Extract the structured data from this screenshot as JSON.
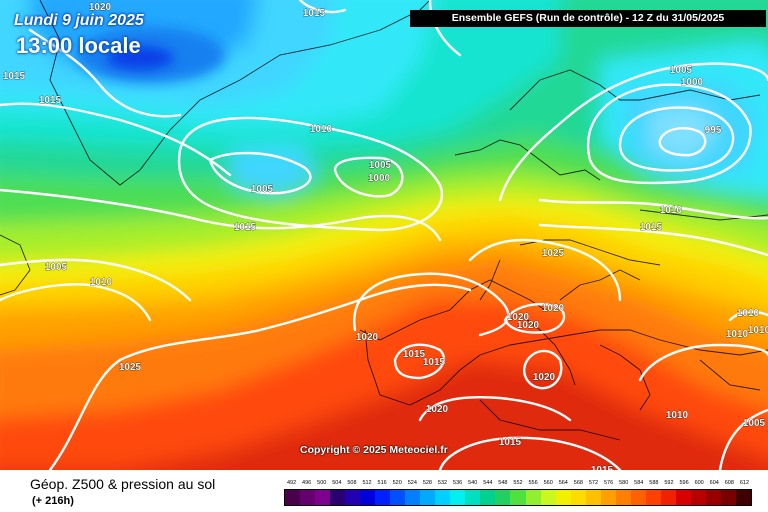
{
  "header": {
    "date": "Lundi 9 juin 2025",
    "local_time": "13:00 locale",
    "run_info": "Ensemble GEFS  (Run de contrôle)  -  12 Z du 31/05/2025"
  },
  "copyright": "Copyright © 2025 Meteociel.fr",
  "footer": {
    "title": "Géop. Z500 & pression au sol",
    "lead_time": "(+ 216h)"
  },
  "color_scale": {
    "unit_note": "",
    "ticks": [
      "492",
      "496",
      "500",
      "504",
      "508",
      "512",
      "516",
      "520",
      "524",
      "528",
      "532",
      "536",
      "540",
      "544",
      "548",
      "552",
      "556",
      "560",
      "564",
      "568",
      "572",
      "576",
      "580",
      "584",
      "588",
      "592",
      "596",
      "600",
      "604",
      "608",
      "612"
    ],
    "colors": [
      "#4a004a",
      "#66006e",
      "#7e0090",
      "#2a0070",
      "#2000b0",
      "#0000d8",
      "#0020ff",
      "#0050ff",
      "#0080ff",
      "#00aaff",
      "#00d0ff",
      "#00f0f0",
      "#00e0c0",
      "#00d090",
      "#20d060",
      "#50e040",
      "#90f030",
      "#c8f820",
      "#f0f000",
      "#ffdc00",
      "#ffc000",
      "#ffa000",
      "#ff8000",
      "#ff6000",
      "#ff4000",
      "#f02000",
      "#d80000",
      "#b80000",
      "#980000",
      "#780000",
      "#400000"
    ]
  },
  "isobar_labels": [
    {
      "id": "p-1020-greenland",
      "text": "1020"
    },
    {
      "id": "p-1015-top",
      "text": "1015"
    },
    {
      "id": "p-1015-w1",
      "text": "1015"
    },
    {
      "id": "p-1015-w2",
      "text": "1015"
    },
    {
      "id": "p-1010-n",
      "text": "1010"
    },
    {
      "id": "p-1005-low1",
      "text": "1005"
    },
    {
      "id": "p-1005-low2",
      "text": "1005"
    },
    {
      "id": "p-1000-low",
      "text": "1000"
    },
    {
      "id": "p-1015-mid",
      "text": "1015"
    },
    {
      "id": "p-1005-west",
      "text": "1005"
    },
    {
      "id": "p-1010-west",
      "text": "1010"
    },
    {
      "id": "p-1025-sw",
      "text": "1025"
    },
    {
      "id": "p-1020-atl",
      "text": "1020"
    },
    {
      "id": "p-1015-iberia",
      "text": "1015"
    },
    {
      "id": "p-1015-iberia2",
      "text": "1015"
    },
    {
      "id": "p-1020-med",
      "text": "1020"
    },
    {
      "id": "p-1015-africa",
      "text": "1015"
    },
    {
      "id": "p-1015-bottom",
      "text": "1015"
    },
    {
      "id": "p-1020-alps1",
      "text": "1020"
    },
    {
      "id": "p-1020-alps2",
      "text": "1020"
    },
    {
      "id": "p-1020-alps3",
      "text": "1020"
    },
    {
      "id": "p-1020-italy",
      "text": "1020"
    },
    {
      "id": "p-1025-germany",
      "text": "1025"
    },
    {
      "id": "p-1005-scand",
      "text": "1005"
    },
    {
      "id": "p-1000-scand",
      "text": "1000"
    },
    {
      "id": "p-995-scand",
      "text": "995"
    },
    {
      "id": "p-1010-scand",
      "text": "1010"
    },
    {
      "id": "p-1015-scand",
      "text": "1015"
    },
    {
      "id": "p-1010-east",
      "text": "1010"
    },
    {
      "id": "p-1010-east2",
      "text": "1010"
    },
    {
      "id": "p-1010-east3",
      "text": "1010"
    },
    {
      "id": "p-1010-se",
      "text": "1010"
    },
    {
      "id": "p-1005-se",
      "text": "1005"
    }
  ]
}
